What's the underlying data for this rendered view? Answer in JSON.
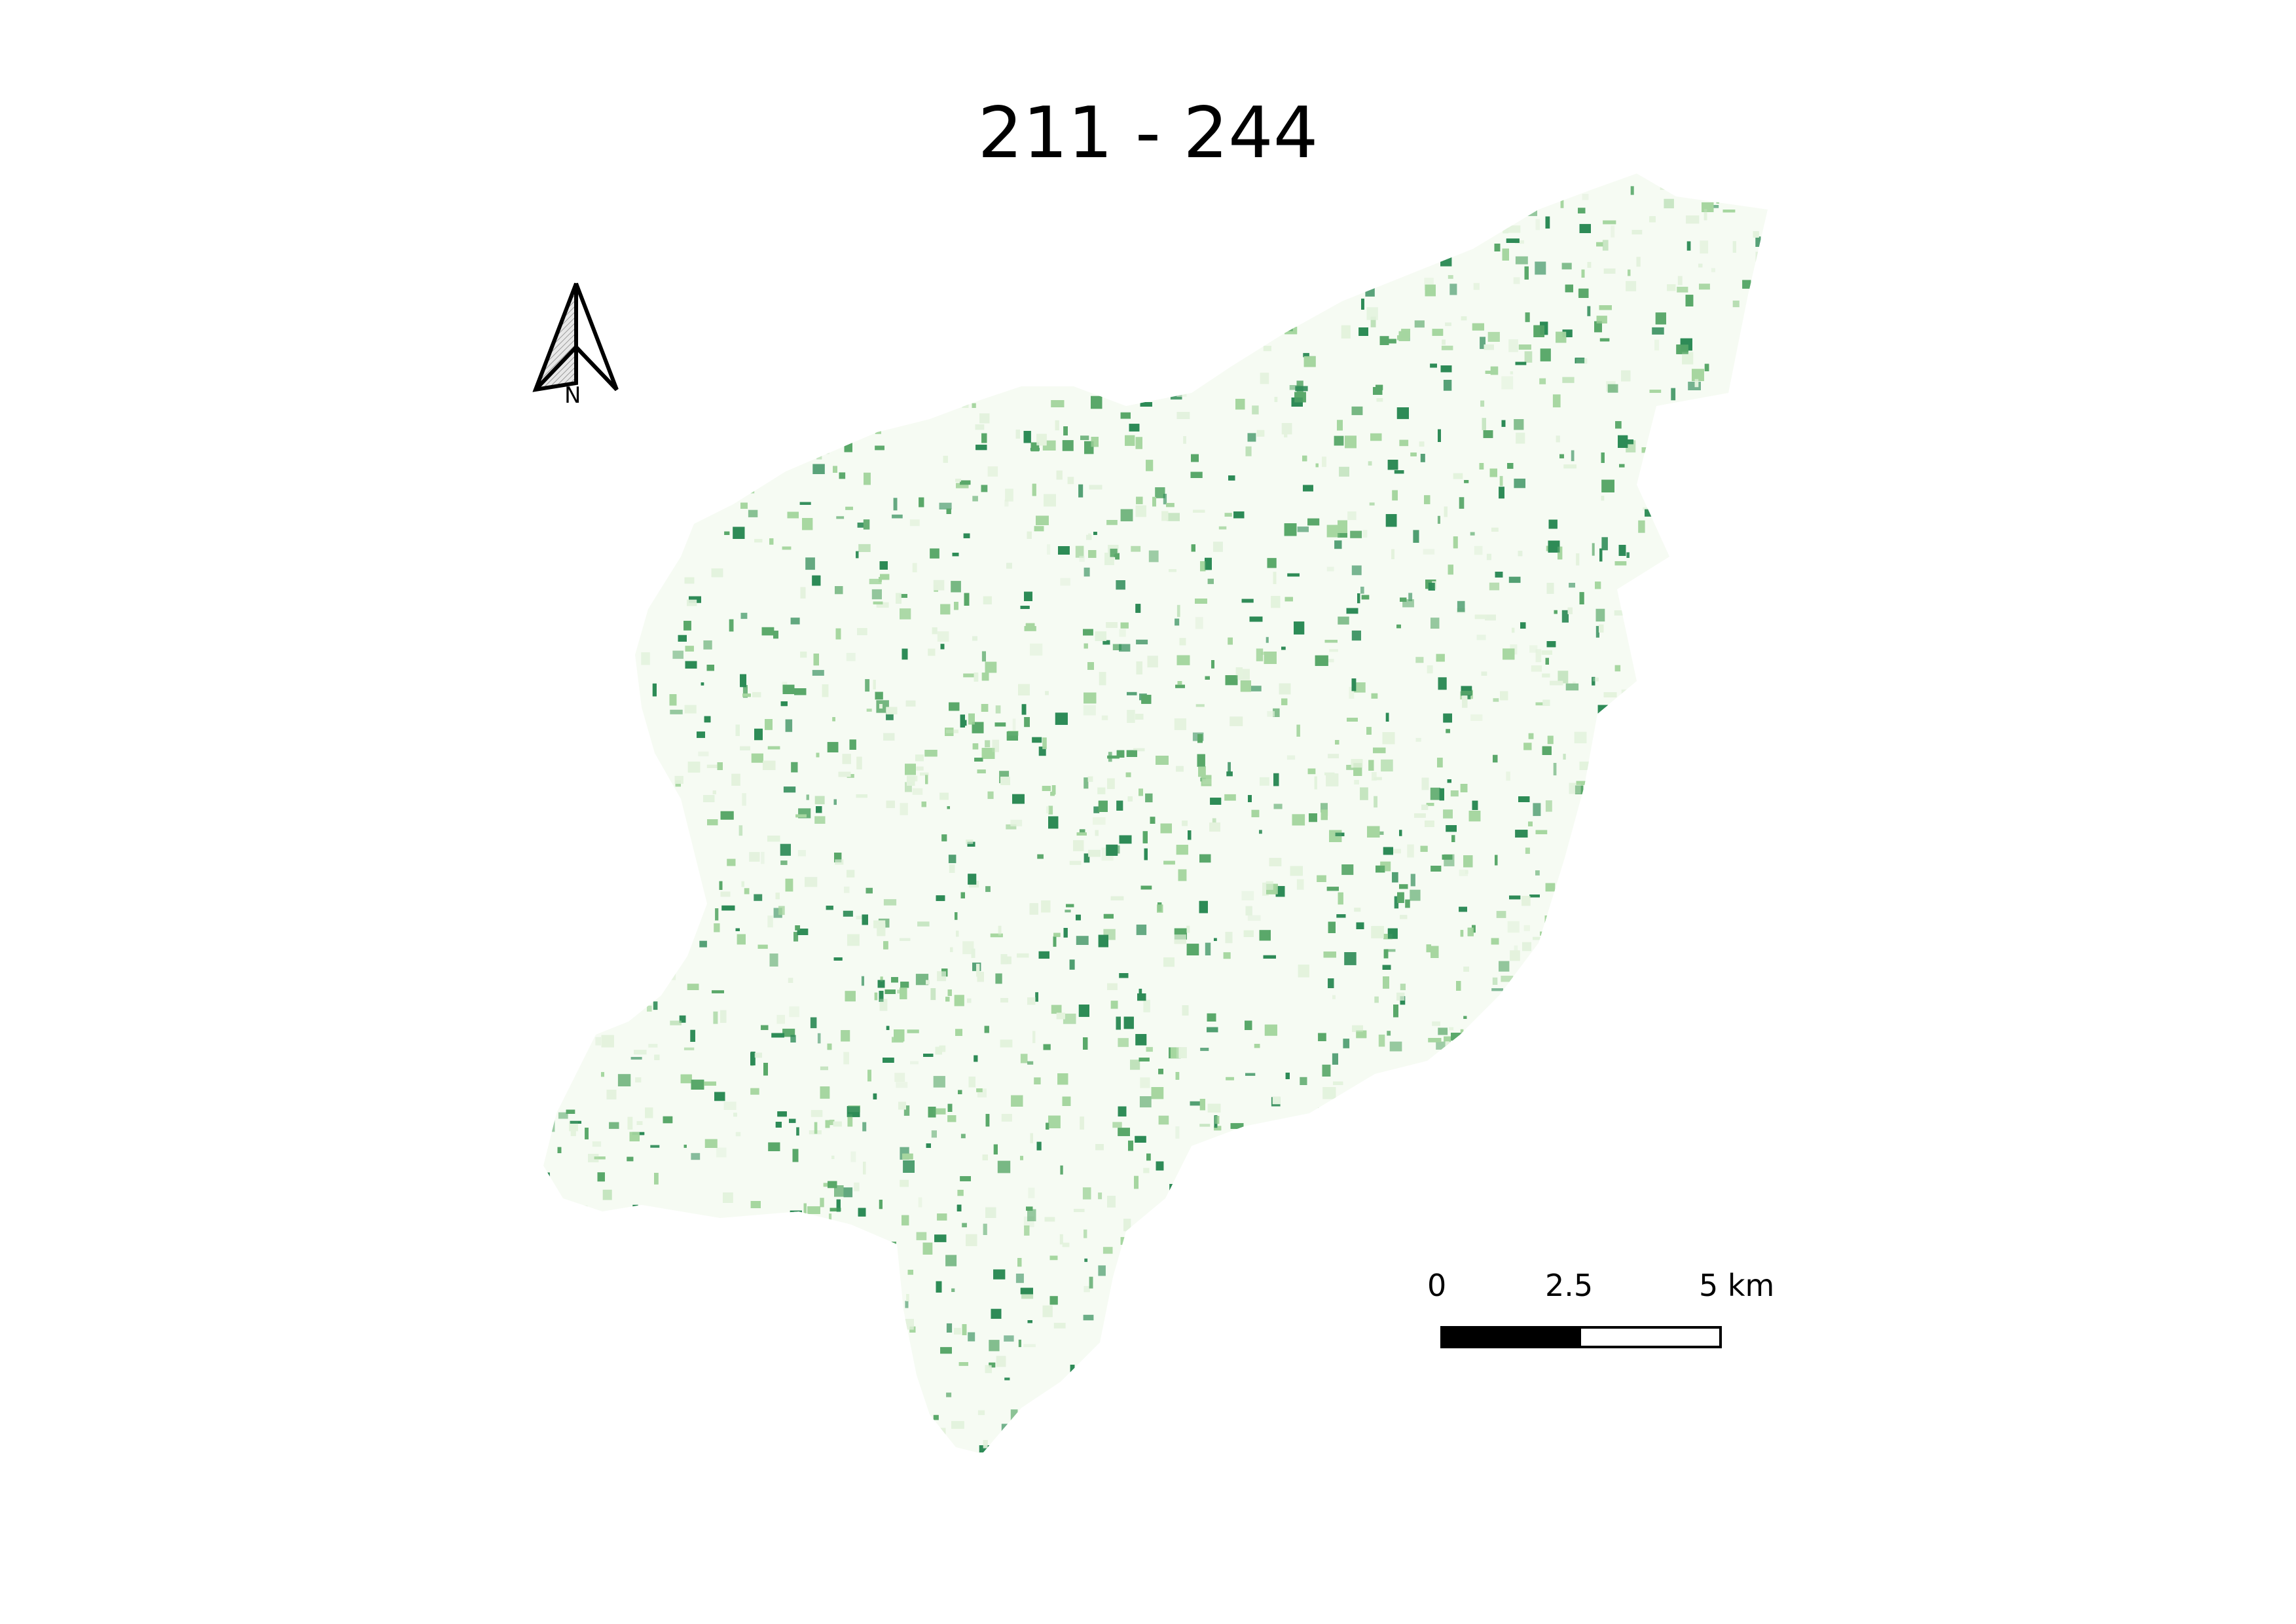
{
  "map": {
    "title": "211 - 244",
    "north_arrow": {
      "label": "N"
    },
    "scale_bar": {
      "labels": [
        "0",
        "2.5",
        "5 km"
      ],
      "segments_km": [
        2.5,
        2.5
      ],
      "filled_segment_index": 0
    },
    "legend_colors": {
      "dark": "#2e8b57",
      "mid": "#5aa86a",
      "light": "#a6d6a0",
      "pale": "#e3f2dd"
    }
  }
}
